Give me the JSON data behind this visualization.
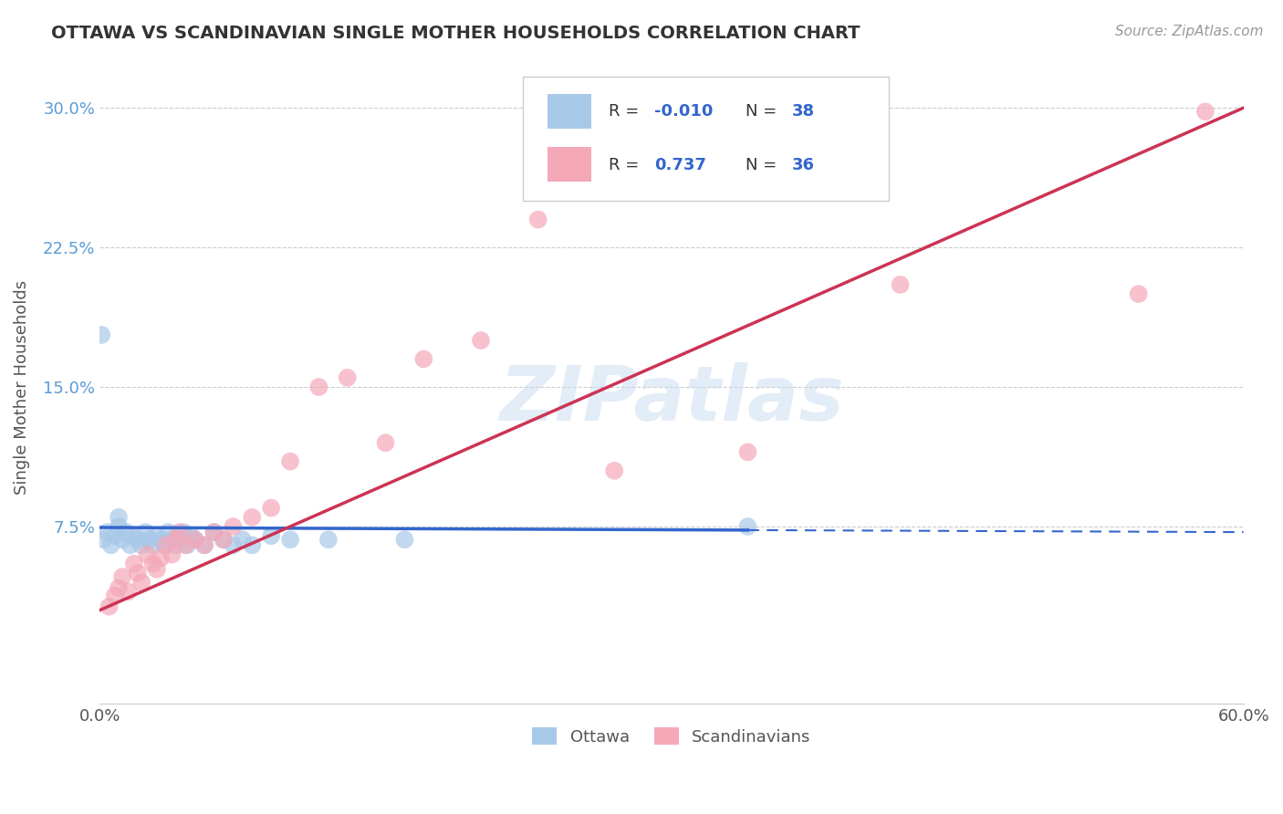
{
  "title": "OTTAWA VS SCANDINAVIAN SINGLE MOTHER HOUSEHOLDS CORRELATION CHART",
  "source": "Source: ZipAtlas.com",
  "ylabel": "Single Mother Households",
  "xlim": [
    0.0,
    0.6
  ],
  "ylim": [
    -0.02,
    0.32
  ],
  "yticks": [
    0.075,
    0.15,
    0.225,
    0.3
  ],
  "ytick_labels": [
    "7.5%",
    "15.0%",
    "22.5%",
    "30.0%"
  ],
  "xticks": [
    0.0,
    0.1,
    0.2,
    0.3,
    0.4,
    0.5,
    0.6
  ],
  "xtick_labels": [
    "0.0%",
    "",
    "",
    "",
    "",
    "",
    "60.0%"
  ],
  "watermark": "ZIPatlas",
  "blue_color": "#a8c8e8",
  "pink_color": "#f4a8b8",
  "blue_line_color": "#3366cc",
  "pink_line_color": "#cc3355",
  "ottawa_x": [
    0.002,
    0.004,
    0.006,
    0.008,
    0.01,
    0.01,
    0.012,
    0.014,
    0.016,
    0.018,
    0.02,
    0.022,
    0.024,
    0.026,
    0.028,
    0.03,
    0.032,
    0.034,
    0.036,
    0.038,
    0.04,
    0.042,
    0.044,
    0.046,
    0.048,
    0.05,
    0.055,
    0.06,
    0.065,
    0.07,
    0.075,
    0.08,
    0.09,
    0.1,
    0.12,
    0.16,
    0.34,
    0.001
  ],
  "ottawa_y": [
    0.068,
    0.072,
    0.065,
    0.07,
    0.075,
    0.08,
    0.068,
    0.072,
    0.065,
    0.07,
    0.068,
    0.065,
    0.072,
    0.068,
    0.065,
    0.07,
    0.068,
    0.065,
    0.072,
    0.068,
    0.065,
    0.068,
    0.072,
    0.065,
    0.07,
    0.068,
    0.065,
    0.072,
    0.068,
    0.065,
    0.068,
    0.065,
    0.07,
    0.068,
    0.068,
    0.068,
    0.075,
    0.178
  ],
  "scandinavian_x": [
    0.005,
    0.008,
    0.01,
    0.012,
    0.015,
    0.018,
    0.02,
    0.022,
    0.025,
    0.028,
    0.03,
    0.032,
    0.035,
    0.038,
    0.04,
    0.042,
    0.045,
    0.05,
    0.055,
    0.06,
    0.065,
    0.07,
    0.08,
    0.09,
    0.1,
    0.115,
    0.13,
    0.15,
    0.17,
    0.2,
    0.23,
    0.27,
    0.34,
    0.42,
    0.545,
    0.58
  ],
  "scandinavian_y": [
    0.032,
    0.038,
    0.042,
    0.048,
    0.04,
    0.055,
    0.05,
    0.045,
    0.06,
    0.055,
    0.052,
    0.058,
    0.065,
    0.06,
    0.068,
    0.072,
    0.065,
    0.068,
    0.065,
    0.072,
    0.068,
    0.075,
    0.08,
    0.085,
    0.11,
    0.15,
    0.155,
    0.12,
    0.165,
    0.175,
    0.24,
    0.105,
    0.115,
    0.205,
    0.2,
    0.298
  ],
  "pink_line_x0": 0.0,
  "pink_line_y0": 0.03,
  "pink_line_x1": 0.6,
  "pink_line_y1": 0.3,
  "blue_line_x0": 0.0,
  "blue_line_y0": 0.0745,
  "blue_line_x1": 0.6,
  "blue_line_y1": 0.072
}
